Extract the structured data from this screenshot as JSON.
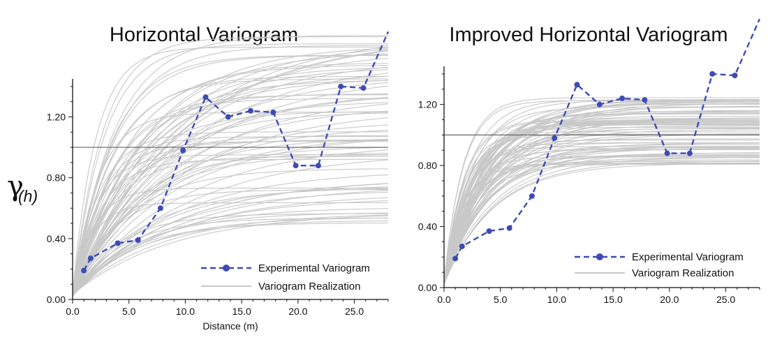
{
  "y_symbol": "γ",
  "y_symbol_sub": "(h)",
  "chart_data": [
    {
      "type": "line",
      "title": "Horizontal Variogram",
      "xlabel": "Distance (m)",
      "ylabel": "γ(h)",
      "xlim": [
        0,
        28
      ],
      "ylim": [
        0,
        1.45
      ],
      "xticks": [
        "0.0",
        "5.0",
        "10.0",
        "15.0",
        "20.0",
        "25.0"
      ],
      "yticks": [
        "0.00",
        "0.40",
        "0.80",
        "1.20"
      ],
      "sill": 1.0,
      "legend_position": "bottom-right",
      "series": [
        {
          "name": "Experimental Variogram",
          "style": "dashed-markers",
          "color": "#3d4bb5",
          "x": [
            1.0,
            1.6,
            4.0,
            5.8,
            7.8,
            9.8,
            11.8,
            13.8,
            15.8,
            17.8,
            19.8,
            21.8,
            23.8,
            25.8,
            28.0
          ],
          "y": [
            0.19,
            0.27,
            0.37,
            0.39,
            0.6,
            0.98,
            1.33,
            1.2,
            1.24,
            1.23,
            0.88,
            0.88,
            1.4,
            1.39,
            1.76
          ]
        },
        {
          "name": "Variogram Realization",
          "style": "solid",
          "color": "#c8c8c8",
          "note": "family of many gray model curves",
          "sill_range": [
            0.5,
            1.75
          ],
          "range_range": [
            5,
            30
          ]
        }
      ]
    },
    {
      "type": "line",
      "title": "Improved Horizontal Variogram",
      "xlabel": "",
      "ylabel": "",
      "xlim": [
        0,
        28
      ],
      "ylim": [
        0,
        1.45
      ],
      "xticks": [
        "0.0",
        "5.0",
        "10.0",
        "15.0",
        "20.0",
        "25.0"
      ],
      "yticks": [
        "0.00",
        "0.40",
        "0.80",
        "1.20"
      ],
      "sill": 1.0,
      "legend_position": "bottom-right",
      "series": [
        {
          "name": "Experimental Variogram",
          "style": "dashed-markers",
          "color": "#3d4bb5",
          "x": [
            1.0,
            1.6,
            4.0,
            5.8,
            7.8,
            9.8,
            11.8,
            13.8,
            15.8,
            17.8,
            19.8,
            21.8,
            23.8,
            25.8,
            28.0
          ],
          "y": [
            0.19,
            0.27,
            0.37,
            0.39,
            0.6,
            0.98,
            1.33,
            1.2,
            1.24,
            1.23,
            0.88,
            0.88,
            1.4,
            1.39,
            1.76
          ]
        },
        {
          "name": "Variogram Realization",
          "style": "solid",
          "color": "#c8c8c8",
          "note": "family of many gray model curves",
          "sill_range": [
            0.8,
            1.25
          ],
          "range_range": [
            5,
            14
          ]
        }
      ]
    }
  ]
}
